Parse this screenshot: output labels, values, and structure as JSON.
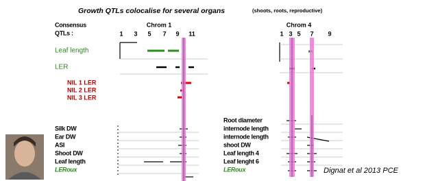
{
  "title": "Growth QTLs colocalise for several organs",
  "subtitle": "(shoots, roots, reproductive)",
  "consensus_label": "Consensus",
  "qtls_label": "QTLs :",
  "chrom1": {
    "name": "Chrom 1",
    "ticks": [
      "1",
      "3",
      "5",
      "7",
      "9",
      "11"
    ]
  },
  "chrom4": {
    "name": "Chrom 4",
    "ticks": [
      "1",
      "3",
      "5",
      "7",
      "9"
    ]
  },
  "rows_top": [
    "Leaf length",
    "LER"
  ],
  "nil_rows": [
    "NIL 1 LER",
    "NIL 2 LER",
    "NIL 3 LER"
  ],
  "rows_left": [
    "Silk DW",
    "Ear DW",
    "ASI",
    "Shoot DW",
    "Leaf length",
    "LERoux"
  ],
  "rows_right": [
    "Root diameter",
    "internode length",
    "internode length",
    "shoot DW",
    "Leaf length 4",
    "Leaf lenght 6",
    "LERoux"
  ],
  "citation": "Dignat et al 2013 PCE"
}
